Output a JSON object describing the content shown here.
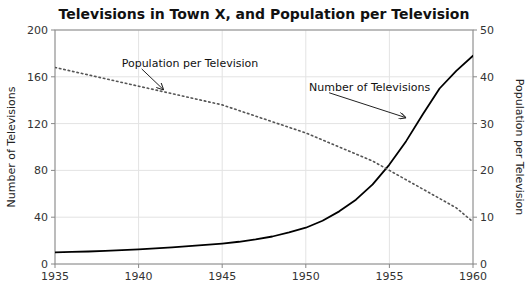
{
  "chart_data": {
    "type": "line",
    "title": "Televisions in Town X, and Population per Television",
    "y_label": "Number of Televisions",
    "y2_label": "Population per Television",
    "x": [
      1935,
      1936,
      1937,
      1938,
      1939,
      1940,
      1941,
      1942,
      1943,
      1944,
      1945,
      1946,
      1947,
      1948,
      1949,
      1950,
      1951,
      1952,
      1953,
      1954,
      1955,
      1956,
      1957,
      1958,
      1959,
      1960
    ],
    "xlim": [
      1935,
      1960
    ],
    "xticks": [
      1935,
      1940,
      1945,
      1950,
      1955,
      1960
    ],
    "ylim": [
      0,
      200
    ],
    "yticks": [
      0,
      40,
      80,
      120,
      160,
      200
    ],
    "y2lim": [
      0,
      50
    ],
    "y2ticks": [
      0,
      10,
      20,
      30,
      40,
      50
    ],
    "grid": true,
    "series": [
      {
        "color": "#000000",
        "line_style": "solid",
        "values": [
          10,
          10.3,
          10.7,
          11.2,
          11.8,
          12.5,
          13.3,
          14.2,
          15.2,
          16.3,
          17.5,
          19,
          21,
          23.5,
          27,
          31,
          37,
          45,
          55,
          68,
          85,
          105,
          128,
          150,
          165,
          178
        ]
      },
      {
        "color": "#555555",
        "line_style": "dotted",
        "axis": "y2",
        "values": [
          42,
          41.2,
          40.4,
          39.6,
          38.8,
          38,
          37.2,
          36.4,
          35.6,
          34.8,
          34,
          32.8,
          31.6,
          30.4,
          29.2,
          28,
          26.5,
          25,
          23.5,
          22,
          20,
          18,
          16,
          14,
          12,
          9
        ]
      }
    ],
    "annotations": [
      {
        "text": "Number of Televisions",
        "x": 1956.0,
        "y": 125
      },
      {
        "text": "Population per Television",
        "x": 1941.5,
        "y": 37.2,
        "axis": "y2"
      }
    ]
  }
}
